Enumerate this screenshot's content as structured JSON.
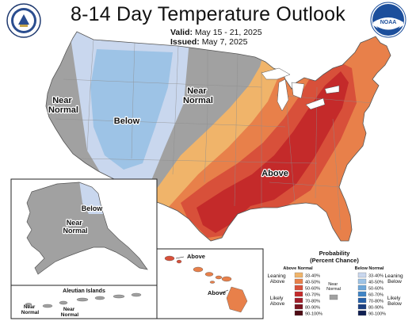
{
  "title": "8-14 Day Temperature Outlook",
  "valid": {
    "label": "Valid:",
    "value": "May 15 - 21, 2025"
  },
  "issued": {
    "label": "Issued:",
    "value": "May 7, 2025"
  },
  "logos": {
    "left": "department-of-commerce-seal",
    "right_text": "NOAA"
  },
  "colors": {
    "below_33_40": "#c9d7ee",
    "below_40_50": "#9dc3e6",
    "near_normal": "#a1a1a1",
    "above_33_40": "#f0b46a",
    "above_40_50": "#e8804a",
    "above_50_60": "#d8503a",
    "above_60_70": "#c42a2a"
  },
  "regions": {
    "near_normal_west": "Near\nNormal",
    "below": "Below",
    "near_normal_central": "Near\nNormal",
    "above": "Above",
    "alaska_below": "Below",
    "alaska_near_normal": "Near\nNormal",
    "aleutian_title": "Aleutian Islands",
    "aleutian_near_normal_1": "Near\nNormal",
    "aleutian_near_normal_2": "Near\nNormal",
    "hawaii_above_1": "Above",
    "hawaii_above_2": "Above"
  },
  "legend": {
    "title": "Probability\n(Percent Chance)",
    "above_header": "Above Normal",
    "below_header": "Below Normal",
    "near_normal": "Near\nNormal",
    "leaning_above": "Leaning\nAbove",
    "likely_above": "Likely\nAbove",
    "leaning_below": "Leaning\nBelow",
    "likely_below": "Likely\nBelow",
    "above_bins": [
      {
        "range": "33-40%",
        "color": "#f0b46a"
      },
      {
        "range": "40-50%",
        "color": "#e8804a"
      },
      {
        "range": "50-60%",
        "color": "#d8503a"
      },
      {
        "range": "60-70%",
        "color": "#c42a2a"
      },
      {
        "range": "70-80%",
        "color": "#a01d2a"
      },
      {
        "range": "80-90%",
        "color": "#7a1420"
      },
      {
        "range": "90-100%",
        "color": "#4e0c14"
      }
    ],
    "below_bins": [
      {
        "range": "33-40%",
        "color": "#c9d7ee"
      },
      {
        "range": "40-50%",
        "color": "#9dc3e6"
      },
      {
        "range": "50-60%",
        "color": "#6ea7d9"
      },
      {
        "range": "60-70%",
        "color": "#3f84c5"
      },
      {
        "range": "70-80%",
        "color": "#2660a8"
      },
      {
        "range": "80-90%",
        "color": "#1c3f80"
      },
      {
        "range": "90-100%",
        "color": "#101f52"
      }
    ]
  }
}
